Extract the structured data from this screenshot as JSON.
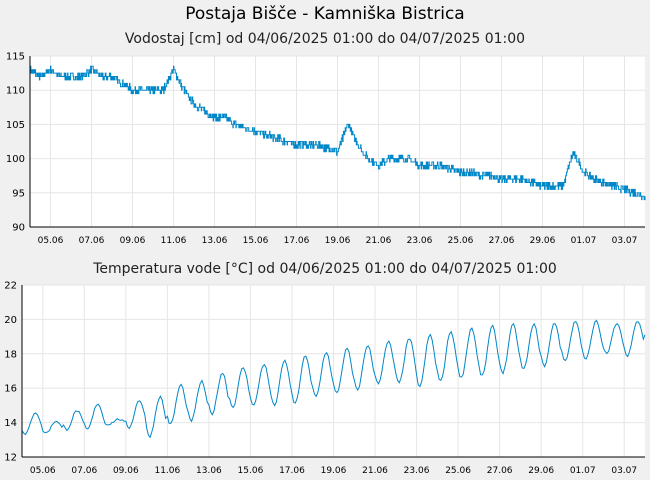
{
  "header": {
    "title": "Postaja Bišče - Kamniška Bistrica"
  },
  "chart_data": [
    {
      "type": "line",
      "title": "Vodostaj [cm] od 04/06/2025 01:00 do 04/07/2025 01:00",
      "xlabel": "",
      "ylabel": "",
      "ylim": [
        90,
        115
      ],
      "yticks": [
        90,
        95,
        100,
        105,
        110,
        115
      ],
      "xticks": [
        "05.06",
        "07.06",
        "09.06",
        "11.06",
        "13.06",
        "15.06",
        "17.06",
        "19.06",
        "21.06",
        "23.06",
        "25.06",
        "27.06",
        "29.06",
        "01.07",
        "03.07"
      ],
      "grid": true,
      "color": "#0087c8",
      "series": [
        {
          "x_days_from_start": [
            0,
            0.5,
            1,
            1.5,
            2,
            2.5,
            3,
            3.5,
            4,
            4.5,
            5,
            5.5,
            6,
            6.5,
            7,
            7.5,
            8,
            8.5,
            9,
            9.5,
            10,
            10.5,
            11,
            11.5,
            12,
            12.5,
            13,
            13.5,
            14,
            14.5,
            15,
            15.5,
            16,
            16.5,
            17,
            17.5,
            18,
            18.5,
            19,
            19.5,
            20,
            20.5,
            21,
            21.5,
            22,
            22.5,
            23,
            23.5,
            24,
            24.5,
            25,
            25.5,
            26,
            26.5,
            27,
            27.5,
            28,
            28.5,
            29,
            29.5,
            30
          ],
          "values": [
            113,
            112,
            113,
            112,
            112,
            112,
            113,
            112,
            112,
            111,
            110,
            110,
            110,
            110,
            113,
            110,
            108,
            107,
            106,
            106,
            105,
            104.5,
            104,
            103.5,
            103,
            102.5,
            102,
            102,
            102,
            101.5,
            101,
            105,
            102,
            100,
            99,
            100,
            100,
            100,
            99,
            99,
            99,
            98.5,
            98,
            98,
            97.5,
            97.5,
            97,
            97,
            97,
            96.5,
            96,
            96,
            96,
            101,
            98,
            97,
            96.5,
            96,
            95.5,
            95,
            94.5
          ]
        }
      ]
    },
    {
      "type": "line",
      "title": "Temperatura vode [°C] od 04/06/2025 01:00 do 04/07/2025 01:00",
      "xlabel": "",
      "ylabel": "",
      "ylim": [
        12,
        22
      ],
      "yticks": [
        12,
        14,
        16,
        18,
        20,
        22
      ],
      "xticks": [
        "05.06",
        "07.06",
        "09.06",
        "11.06",
        "13.06",
        "15.06",
        "17.06",
        "19.06",
        "21.06",
        "23.06",
        "25.06",
        "27.06",
        "29.06",
        "01.07",
        "03.07"
      ],
      "grid": true,
      "color": "#0087c8",
      "daily_min": [
        13.3,
        13.4,
        13.6,
        13.6,
        13.9,
        13.7,
        13.2,
        13.9,
        14.1,
        14.5,
        14.9,
        15.0,
        15.0,
        15.1,
        15.5,
        15.7,
        15.9,
        16.3,
        16.3,
        16.1,
        16.4,
        16.6,
        16.7,
        16.9,
        17.1,
        17.3,
        17.6,
        17.7,
        18.0,
        17.9,
        18.4
      ],
      "daily_max": [
        14.6,
        14.1,
        14.7,
        15.1,
        14.2,
        15.3,
        15.5,
        16.2,
        16.4,
        16.9,
        17.2,
        17.4,
        17.6,
        17.9,
        18.1,
        18.3,
        18.5,
        18.7,
        18.9,
        19.1,
        19.3,
        19.5,
        19.6,
        19.7,
        19.7,
        19.8,
        19.9,
        19.9,
        19.8,
        19.9,
        19.7
      ]
    }
  ]
}
